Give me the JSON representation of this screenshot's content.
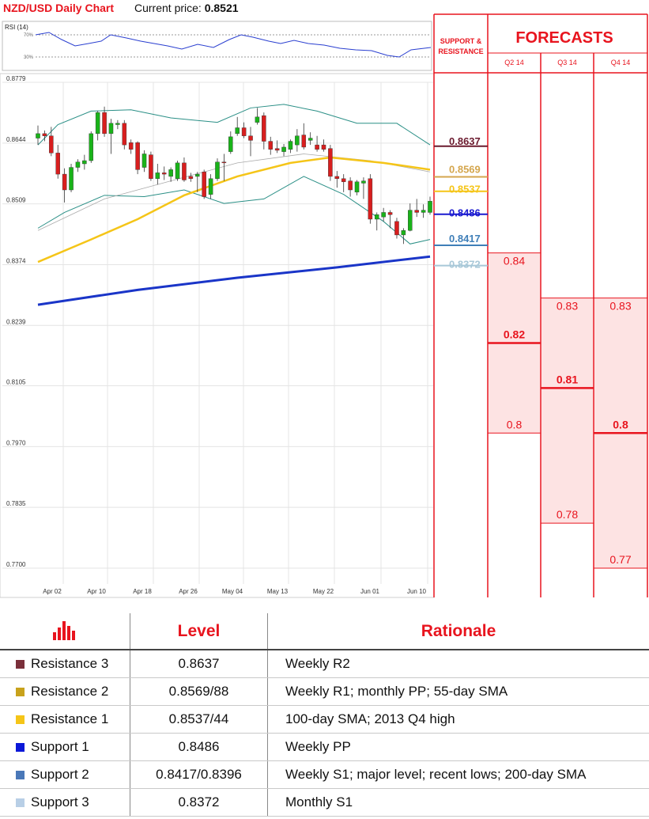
{
  "header": {
    "title": "NZD/USD Daily Chart",
    "current_price_label": "Current price:",
    "current_price": "0.8521"
  },
  "rsi": {
    "label": "RSI (14)",
    "levels": [
      "70%",
      "30%"
    ]
  },
  "panels": {
    "sr_title_1": "SUPPORT &",
    "sr_title_2": "RESISTANCE",
    "forecast_title": "FORECASTS"
  },
  "colors": {
    "accent_red": "#e8141e",
    "r3": "#6b1a2e",
    "r2": "#d4a64e",
    "r1": "#f5c518",
    "s1": "#1a1ad0",
    "s2": "#3f7fb8",
    "s3": "#a8c8d8",
    "sma55": "#aaaaaa",
    "sma100": "#f5c518",
    "sma200": "#1a35c8",
    "bull": "#19b319",
    "bear": "#d81e1e",
    "bollinger": "#2a8f86"
  },
  "chart_data": {
    "type": "candlestick",
    "title": "NZD/USD Daily Chart",
    "ylim": [
      0.77,
      0.8779
    ],
    "yticks": [
      "0.8779",
      "0.8644",
      "0.8509",
      "0.8374",
      "0.8239",
      "0.8105",
      "0.7970",
      "0.7835",
      "0.7700"
    ],
    "xticks": [
      "Apr 02",
      "Apr 10",
      "Apr 18",
      "Apr 26",
      "May 04",
      "May 13",
      "May 22",
      "Jun 01",
      "Jun 10"
    ],
    "candles": [
      [
        0.8655,
        0.8683,
        0.864,
        0.8665
      ],
      [
        0.8665,
        0.8672,
        0.8648,
        0.866
      ],
      [
        0.866,
        0.868,
        0.8615,
        0.8622
      ],
      [
        0.8622,
        0.864,
        0.8565,
        0.8575
      ],
      [
        0.8575,
        0.8588,
        0.8512,
        0.854
      ],
      [
        0.854,
        0.8598,
        0.8535,
        0.859
      ],
      [
        0.859,
        0.8608,
        0.858,
        0.8602
      ],
      [
        0.8598,
        0.8618,
        0.8585,
        0.8605
      ],
      [
        0.8605,
        0.867,
        0.86,
        0.8665
      ],
      [
        0.8665,
        0.8715,
        0.865,
        0.8712
      ],
      [
        0.8712,
        0.8725,
        0.8658,
        0.8665
      ],
      [
        0.8665,
        0.8698,
        0.862,
        0.8688
      ],
      [
        0.8685,
        0.8695,
        0.8675,
        0.8688
      ],
      [
        0.8688,
        0.8695,
        0.863,
        0.864
      ],
      [
        0.8645,
        0.8652,
        0.862,
        0.863
      ],
      [
        0.8645,
        0.8648,
        0.8575,
        0.8585
      ],
      [
        0.859,
        0.8628,
        0.858,
        0.862
      ],
      [
        0.8618,
        0.8625,
        0.856,
        0.8565
      ],
      [
        0.8565,
        0.8598,
        0.8552,
        0.8578
      ],
      [
        0.8578,
        0.8592,
        0.8562,
        0.8575
      ],
      [
        0.857,
        0.859,
        0.8558,
        0.8585
      ],
      [
        0.8565,
        0.8605,
        0.856,
        0.86
      ],
      [
        0.86,
        0.8612,
        0.8558,
        0.8562
      ],
      [
        0.857,
        0.8578,
        0.8558,
        0.8565
      ],
      [
        0.857,
        0.858,
        0.8535,
        0.8575
      ],
      [
        0.858,
        0.8585,
        0.852,
        0.8525
      ],
      [
        0.853,
        0.8575,
        0.852,
        0.8565
      ],
      [
        0.8565,
        0.861,
        0.856,
        0.8602
      ],
      [
        0.8602,
        0.862,
        0.856,
        0.86
      ],
      [
        0.8625,
        0.867,
        0.862,
        0.8658
      ],
      [
        0.8665,
        0.8702,
        0.866,
        0.8678
      ],
      [
        0.8678,
        0.869,
        0.8655,
        0.866
      ],
      [
        0.866,
        0.868,
        0.8615,
        0.865
      ],
      [
        0.869,
        0.8722,
        0.8685,
        0.8702
      ],
      [
        0.8705,
        0.8712,
        0.863,
        0.8648
      ],
      [
        0.8648,
        0.8658,
        0.8618,
        0.863
      ],
      [
        0.8632,
        0.865,
        0.8622,
        0.8628
      ],
      [
        0.8625,
        0.8642,
        0.8615,
        0.8635
      ],
      [
        0.863,
        0.8652,
        0.8622,
        0.8648
      ],
      [
        0.864,
        0.8675,
        0.8625,
        0.866
      ],
      [
        0.8662,
        0.8688,
        0.863,
        0.8635
      ],
      [
        0.865,
        0.8668,
        0.864,
        0.8655
      ],
      [
        0.864,
        0.866,
        0.8625,
        0.863
      ],
      [
        0.864,
        0.8652,
        0.8625,
        0.863
      ],
      [
        0.8632,
        0.864,
        0.856,
        0.857
      ],
      [
        0.857,
        0.8582,
        0.8545,
        0.8565
      ],
      [
        0.8565,
        0.8575,
        0.8535,
        0.8558
      ],
      [
        0.856,
        0.8568,
        0.8525,
        0.854
      ],
      [
        0.8535,
        0.8562,
        0.8528,
        0.8558
      ],
      [
        0.8555,
        0.8568,
        0.852,
        0.856
      ],
      [
        0.8565,
        0.8575,
        0.8465,
        0.8475
      ],
      [
        0.8475,
        0.849,
        0.845,
        0.8485
      ],
      [
        0.848,
        0.85,
        0.847,
        0.849
      ],
      [
        0.849,
        0.8495,
        0.8455,
        0.8485
      ],
      [
        0.847,
        0.8478,
        0.8432,
        0.844
      ],
      [
        0.844,
        0.8455,
        0.842,
        0.845
      ],
      [
        0.845,
        0.851,
        0.8448,
        0.8495
      ],
      [
        0.8495,
        0.852,
        0.848,
        0.849
      ],
      [
        0.849,
        0.8508,
        0.8478,
        0.8495
      ],
      [
        0.849,
        0.8525,
        0.8485,
        0.8515
      ]
    ],
    "sma200": [
      [
        0,
        0.8285
      ],
      [
        15,
        0.8318
      ],
      [
        30,
        0.8345
      ],
      [
        45,
        0.8368
      ],
      [
        59,
        0.8392
      ]
    ],
    "sma100": [
      [
        0,
        0.838
      ],
      [
        8,
        0.843
      ],
      [
        15,
        0.8475
      ],
      [
        22,
        0.8528
      ],
      [
        30,
        0.857
      ],
      [
        38,
        0.86
      ],
      [
        44,
        0.8612
      ],
      [
        52,
        0.86
      ],
      [
        59,
        0.8585
      ]
    ],
    "sma55": [
      [
        0,
        0.845
      ],
      [
        10,
        0.852
      ],
      [
        20,
        0.856
      ],
      [
        30,
        0.86
      ],
      [
        40,
        0.862
      ],
      [
        50,
        0.8605
      ],
      [
        59,
        0.858
      ]
    ],
    "bollinger_upper": [
      [
        0,
        0.864
      ],
      [
        3,
        0.8685
      ],
      [
        8,
        0.8715
      ],
      [
        14,
        0.8718
      ],
      [
        20,
        0.87
      ],
      [
        27,
        0.869
      ],
      [
        32,
        0.8722
      ],
      [
        37,
        0.873
      ],
      [
        42,
        0.8715
      ],
      [
        48,
        0.8688
      ],
      [
        54,
        0.8688
      ],
      [
        59,
        0.864
      ]
    ],
    "bollinger_lower": [
      [
        0,
        0.8455
      ],
      [
        4,
        0.849
      ],
      [
        10,
        0.8528
      ],
      [
        16,
        0.8525
      ],
      [
        22,
        0.854
      ],
      [
        28,
        0.851
      ],
      [
        34,
        0.852
      ],
      [
        40,
        0.857
      ],
      [
        46,
        0.853
      ],
      [
        52,
        0.847
      ],
      [
        56,
        0.842
      ],
      [
        59,
        0.843
      ]
    ],
    "support_resistance": [
      {
        "label": "0.8637",
        "value": 0.8637,
        "color": "#6b1a2e"
      },
      {
        "label": "0.8569",
        "value": 0.8569,
        "color": "#d4a64e"
      },
      {
        "label": "0.8537",
        "value": 0.8537,
        "color": "#f5c518"
      },
      {
        "label": "0.8486",
        "value": 0.8486,
        "color": "#1a1ad0"
      },
      {
        "label": "0.8417",
        "value": 0.8417,
        "color": "#3f7fb8"
      },
      {
        "label": "0.8372",
        "value": 0.8372,
        "color": "#a8c8d8"
      }
    ],
    "forecasts": [
      {
        "quarter": "Q2 14",
        "high": 0.84,
        "mid": 0.82,
        "low": 0.8,
        "labels": [
          "0.84",
          "0.82",
          "0.8"
        ]
      },
      {
        "quarter": "Q3 14",
        "high": 0.83,
        "mid": 0.81,
        "low": 0.78,
        "labels": [
          "0.83",
          "0.81",
          "0.78"
        ]
      },
      {
        "quarter": "Q4 14",
        "high": 0.83,
        "mid": 0.8,
        "low": 0.77,
        "labels": [
          "0.83",
          "0.8",
          "0.77"
        ]
      }
    ]
  },
  "table": {
    "headers": {
      "level": "Level",
      "rationale": "Rationale"
    },
    "rows": [
      {
        "name": "Resistance 3",
        "level": "0.8637",
        "rationale": "Weekly R2",
        "color": "#7a2f3a"
      },
      {
        "name": "Resistance 2",
        "level": "0.8569/88",
        "rationale": "Weekly R1; monthly PP; 55-day SMA",
        "color": "#c8a21c"
      },
      {
        "name": "Resistance 1",
        "level": "0.8537/44",
        "rationale": "100-day SMA; 2013 Q4 high",
        "color": "#f5c518"
      },
      {
        "name": "Support 1",
        "level": "0.8486",
        "rationale": "Weekly PP",
        "color": "#0b18d8"
      },
      {
        "name": "Support 2",
        "level": "0.8417/0.8396",
        "rationale": "Weekly S1; major level; recent lows; 200-day SMA",
        "color": "#4a78b8"
      },
      {
        "name": "Support 3",
        "level": "0.8372",
        "rationale": "Monthly S1",
        "color": "#b8cfe6"
      }
    ]
  }
}
